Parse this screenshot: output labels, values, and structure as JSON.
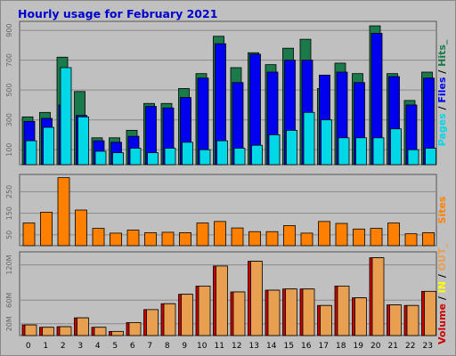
{
  "colors": {
    "background": "#c0c0c0",
    "panel": "#c0c0c0",
    "title": "#0000cc",
    "hits": "#1a7a4a",
    "files": "#0000ee",
    "pages": "#00d8e8",
    "sites": "#ff8000",
    "volume_in": "#e8a050",
    "volume_out": "#cc0000",
    "sep": "#666666"
  },
  "chart_data": {
    "type": "bar",
    "title": "Hourly usage for February 2021",
    "categories": [
      "0",
      "1",
      "2",
      "3",
      "4",
      "5",
      "6",
      "7",
      "8",
      "9",
      "10",
      "11",
      "12",
      "13",
      "14",
      "15",
      "16",
      "17",
      "18",
      "19",
      "20",
      "21",
      "22",
      "23"
    ],
    "panels": [
      {
        "name": "pages_files_hits",
        "ylim": [
          0,
          960
        ],
        "yticks": [
          "100",
          "300",
          "500",
          "700",
          "900"
        ],
        "ytick_values": [
          100,
          300,
          500,
          700,
          900
        ],
        "side_label": [
          {
            "text": "Pages",
            "color": "#00d8e8"
          },
          {
            "text": " / ",
            "color": "#000000"
          },
          {
            "text": "Files",
            "color": "#0000ee"
          },
          {
            "text": " / ",
            "color": "#000000"
          },
          {
            "text": "Hits",
            "color": "#1a7a4a"
          },
          {
            "text": "_",
            "color": "#1a7a4a"
          }
        ],
        "series": [
          {
            "name": "Hits",
            "values": [
              320,
              350,
              720,
              490,
              180,
              180,
              230,
              410,
              410,
              510,
              610,
              860,
              650,
              750,
              670,
              780,
              840,
              510,
              680,
              610,
              930,
              610,
              430,
              620
            ]
          },
          {
            "name": "Files",
            "values": [
              290,
              310,
              400,
              330,
              160,
              150,
              190,
              390,
              380,
              450,
              580,
              810,
              550,
              740,
              620,
              700,
              700,
              600,
              620,
              550,
              880,
              590,
              400,
              580
            ]
          },
          {
            "name": "Pages",
            "values": [
              160,
              250,
              650,
              320,
              90,
              80,
              110,
              80,
              110,
              150,
              100,
              160,
              110,
              130,
              200,
              230,
              350,
              300,
              180,
              180,
              180,
              240,
              100,
              110
            ]
          }
        ]
      },
      {
        "name": "sites",
        "ylim": [
          0,
          330
        ],
        "yticks": [
          "50",
          "150",
          "250"
        ],
        "ytick_values": [
          50,
          150,
          250
        ],
        "side_label": [
          {
            "text": "Sites",
            "color": "#ff8000"
          }
        ],
        "series": [
          {
            "name": "Sites",
            "values": [
              105,
              155,
              315,
              165,
              80,
              58,
              72,
              60,
              62,
              60,
              105,
              112,
              82,
              65,
              65,
              93,
              58,
              112,
              103,
              77,
              80,
              105,
              55,
              60
            ]
          }
        ]
      },
      {
        "name": "volume",
        "ylim": [
          0,
          142
        ],
        "yticks": [
          "20M",
          "60M",
          "120M"
        ],
        "ytick_values": [
          20,
          60,
          120
        ],
        "side_label": [
          {
            "text": "Volume",
            "color": "#cc0000"
          },
          {
            "text": " / ",
            "color": "#000000"
          },
          {
            "text": "IN",
            "color": "#ffff00"
          },
          {
            "text": " / ",
            "color": "#000000"
          },
          {
            "text": "OUT",
            "color": "#e8a050"
          },
          {
            "text": "_",
            "color": "#e8a050"
          }
        ],
        "series": [
          {
            "name": "Volume",
            "values": [
              18,
              14,
              15,
              30,
              14,
              7,
              22,
              44,
              54,
              70,
              84,
              118,
              74,
              126,
              77,
              79,
              79,
              51,
              84,
              64,
              132,
              52,
              51,
              75
            ]
          },
          {
            "name": "OUT",
            "values": [
              18,
              14,
              15,
              30,
              14,
              7,
              22,
              44,
              54,
              70,
              84,
              118,
              74,
              126,
              77,
              79,
              79,
              51,
              84,
              64,
              132,
              52,
              51,
              75
            ]
          }
        ]
      }
    ]
  }
}
